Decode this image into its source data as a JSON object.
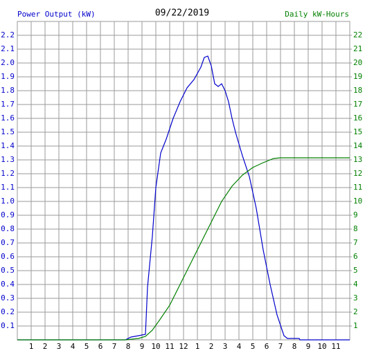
{
  "chart_data": {
    "type": "line",
    "title": "09/22/2019",
    "ylabel": "Power Output (kW)",
    "y2label": "Daily kW-Hours",
    "xlim": [
      0,
      24
    ],
    "xticks": [
      1,
      2,
      3,
      4,
      5,
      6,
      7,
      8,
      9,
      10,
      11,
      12,
      {
        "value": 13,
        "label": "1"
      },
      {
        "value": 14,
        "label": "2"
      },
      {
        "value": 15,
        "label": "3"
      },
      {
        "value": 16,
        "label": "4"
      },
      {
        "value": 17,
        "label": "5"
      },
      {
        "value": 18,
        "label": "6"
      },
      {
        "value": 19,
        "label": "7"
      },
      {
        "value": 20,
        "label": "8"
      },
      {
        "value": 21,
        "label": "9"
      },
      {
        "value": 22,
        "label": "10"
      },
      {
        "value": 23,
        "label": "11"
      }
    ],
    "ylim": [
      0,
      2.3
    ],
    "yticks": [
      0.1,
      0.2,
      0.3,
      0.4,
      0.5,
      0.6,
      0.7,
      0.8,
      0.9,
      {
        "value": 1,
        "label": "1.0"
      },
      1.1,
      1.2,
      1.3,
      1.4,
      1.5,
      1.6,
      1.7,
      1.8,
      1.9,
      {
        "value": 2,
        "label": "2.0"
      },
      2.1,
      2.2
    ],
    "y2lim": [
      0,
      23
    ],
    "y2ticks": [
      1,
      2,
      3,
      4,
      5,
      6,
      7,
      8,
      9,
      10,
      11,
      12,
      13,
      14,
      15,
      16,
      17,
      18,
      19,
      20,
      21,
      22
    ],
    "grid": true,
    "ylabel_color": "#0000cc",
    "y2label_color": "#008000",
    "series": [
      {
        "color": "#0000cc",
        "axis": "y",
        "x": [
          0,
          7.8,
          8.2,
          8.75,
          9.25,
          9.4,
          9.75,
          10,
          10.35,
          10.75,
          11.25,
          11.75,
          12.25,
          12.75,
          13.25,
          13.5,
          13.75,
          14,
          14.25,
          14.5,
          14.75,
          15,
          15.25,
          15.5,
          15.75,
          16.25,
          16.75,
          17.25,
          17.75,
          18.25,
          18.75,
          19.25,
          19.5,
          20.35,
          20.4,
          24
        ],
        "values": [
          0,
          0,
          0.02,
          0.03,
          0.04,
          0.38,
          0.75,
          1.1,
          1.35,
          1.45,
          1.6,
          1.72,
          1.82,
          1.88,
          1.97,
          2.04,
          2.05,
          1.98,
          1.85,
          1.83,
          1.85,
          1.8,
          1.72,
          1.6,
          1.5,
          1.33,
          1.18,
          0.95,
          0.65,
          0.4,
          0.18,
          0.03,
          0.01,
          0.01,
          0,
          0
        ]
      },
      {
        "color": "#008000",
        "axis": "y2",
        "x": [
          0,
          7.8,
          8.75,
          9.25,
          9.75,
          10.25,
          11,
          11.75,
          12.5,
          13.25,
          14,
          14.75,
          15.5,
          16.25,
          17,
          17.75,
          18.5,
          19,
          24
        ],
        "values": [
          0,
          0,
          0.1,
          0.25,
          0.7,
          1.4,
          2.5,
          4,
          5.5,
          7,
          8.5,
          10,
          11.1,
          11.9,
          12.45,
          12.8,
          13.1,
          13.15,
          13.15
        ]
      }
    ]
  }
}
